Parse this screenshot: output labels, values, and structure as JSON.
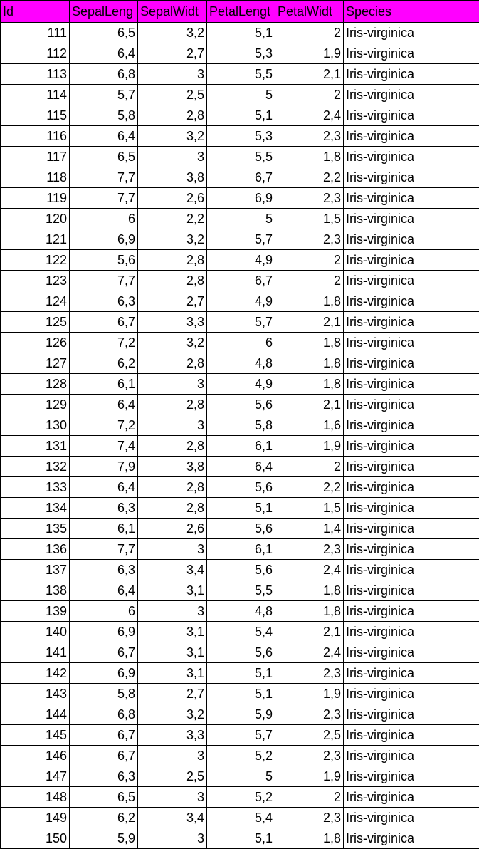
{
  "sheet": {
    "header": {
      "fill_color": "#ff00ff",
      "columns": [
        "Id",
        "SepalLeng",
        "SepalWidt",
        "PetalLengt",
        "PetalWidt",
        "Species"
      ]
    },
    "rows": [
      [
        "111",
        "6,5",
        "3,2",
        "5,1",
        "2",
        "Iris-virginica"
      ],
      [
        "112",
        "6,4",
        "2,7",
        "5,3",
        "1,9",
        "Iris-virginica"
      ],
      [
        "113",
        "6,8",
        "3",
        "5,5",
        "2,1",
        "Iris-virginica"
      ],
      [
        "114",
        "5,7",
        "2,5",
        "5",
        "2",
        "Iris-virginica"
      ],
      [
        "115",
        "5,8",
        "2,8",
        "5,1",
        "2,4",
        "Iris-virginica"
      ],
      [
        "116",
        "6,4",
        "3,2",
        "5,3",
        "2,3",
        "Iris-virginica"
      ],
      [
        "117",
        "6,5",
        "3",
        "5,5",
        "1,8",
        "Iris-virginica"
      ],
      [
        "118",
        "7,7",
        "3,8",
        "6,7",
        "2,2",
        "Iris-virginica"
      ],
      [
        "119",
        "7,7",
        "2,6",
        "6,9",
        "2,3",
        "Iris-virginica"
      ],
      [
        "120",
        "6",
        "2,2",
        "5",
        "1,5",
        "Iris-virginica"
      ],
      [
        "121",
        "6,9",
        "3,2",
        "5,7",
        "2,3",
        "Iris-virginica"
      ],
      [
        "122",
        "5,6",
        "2,8",
        "4,9",
        "2",
        "Iris-virginica"
      ],
      [
        "123",
        "7,7",
        "2,8",
        "6,7",
        "2",
        "Iris-virginica"
      ],
      [
        "124",
        "6,3",
        "2,7",
        "4,9",
        "1,8",
        "Iris-virginica"
      ],
      [
        "125",
        "6,7",
        "3,3",
        "5,7",
        "2,1",
        "Iris-virginica"
      ],
      [
        "126",
        "7,2",
        "3,2",
        "6",
        "1,8",
        "Iris-virginica"
      ],
      [
        "127",
        "6,2",
        "2,8",
        "4,8",
        "1,8",
        "Iris-virginica"
      ],
      [
        "128",
        "6,1",
        "3",
        "4,9",
        "1,8",
        "Iris-virginica"
      ],
      [
        "129",
        "6,4",
        "2,8",
        "5,6",
        "2,1",
        "Iris-virginica"
      ],
      [
        "130",
        "7,2",
        "3",
        "5,8",
        "1,6",
        "Iris-virginica"
      ],
      [
        "131",
        "7,4",
        "2,8",
        "6,1",
        "1,9",
        "Iris-virginica"
      ],
      [
        "132",
        "7,9",
        "3,8",
        "6,4",
        "2",
        "Iris-virginica"
      ],
      [
        "133",
        "6,4",
        "2,8",
        "5,6",
        "2,2",
        "Iris-virginica"
      ],
      [
        "134",
        "6,3",
        "2,8",
        "5,1",
        "1,5",
        "Iris-virginica"
      ],
      [
        "135",
        "6,1",
        "2,6",
        "5,6",
        "1,4",
        "Iris-virginica"
      ],
      [
        "136",
        "7,7",
        "3",
        "6,1",
        "2,3",
        "Iris-virginica"
      ],
      [
        "137",
        "6,3",
        "3,4",
        "5,6",
        "2,4",
        "Iris-virginica"
      ],
      [
        "138",
        "6,4",
        "3,1",
        "5,5",
        "1,8",
        "Iris-virginica"
      ],
      [
        "139",
        "6",
        "3",
        "4,8",
        "1,8",
        "Iris-virginica"
      ],
      [
        "140",
        "6,9",
        "3,1",
        "5,4",
        "2,1",
        "Iris-virginica"
      ],
      [
        "141",
        "6,7",
        "3,1",
        "5,6",
        "2,4",
        "Iris-virginica"
      ],
      [
        "142",
        "6,9",
        "3,1",
        "5,1",
        "2,3",
        "Iris-virginica"
      ],
      [
        "143",
        "5,8",
        "2,7",
        "5,1",
        "1,9",
        "Iris-virginica"
      ],
      [
        "144",
        "6,8",
        "3,2",
        "5,9",
        "2,3",
        "Iris-virginica"
      ],
      [
        "145",
        "6,7",
        "3,3",
        "5,7",
        "2,5",
        "Iris-virginica"
      ],
      [
        "146",
        "6,7",
        "3",
        "5,2",
        "2,3",
        "Iris-virginica"
      ],
      [
        "147",
        "6,3",
        "2,5",
        "5",
        "1,9",
        "Iris-virginica"
      ],
      [
        "148",
        "6,5",
        "3",
        "5,2",
        "2",
        "Iris-virginica"
      ],
      [
        "149",
        "6,2",
        "3,4",
        "5,4",
        "2,3",
        "Iris-virginica"
      ],
      [
        "150",
        "5,9",
        "3",
        "5,1",
        "1,8",
        "Iris-virginica"
      ]
    ]
  }
}
